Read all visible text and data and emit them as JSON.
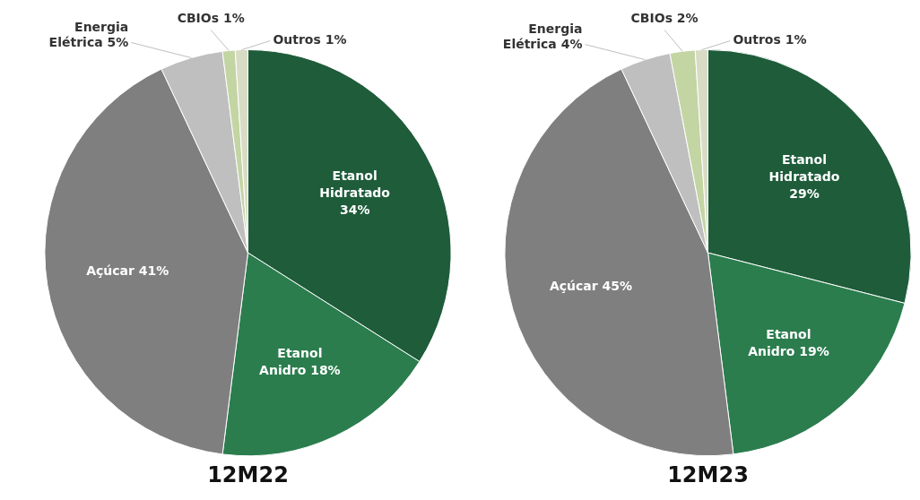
{
  "chart_data": [
    {
      "type": "pie",
      "title": "12M22",
      "categories": [
        "Etanol Hidratado",
        "Etanol Anidro",
        "Açúcar",
        "Energia Elétrica",
        "CBIOs",
        "Outros"
      ],
      "values": [
        34,
        18,
        41,
        5,
        1,
        1
      ],
      "value_labels": [
        "34%",
        "18%",
        "41%",
        "5%",
        "1%",
        "1%"
      ],
      "colors": [
        "#1e5c3a",
        "#2b7d4e",
        "#7f7f7f",
        "#bfbfbf",
        "#c3d5a3",
        "#d8dcc4"
      ]
    },
    {
      "type": "pie",
      "title": "12M23",
      "categories": [
        "Etanol Hidratado",
        "Etanol Anidro",
        "Açúcar",
        "Energia Elétrica",
        "CBIOs",
        "Outros"
      ],
      "values": [
        29,
        19,
        45,
        4,
        2,
        1
      ],
      "value_labels": [
        "29%",
        "19%",
        "45%",
        "4%",
        "2%",
        "1%"
      ],
      "colors": [
        "#1e5c3a",
        "#2b7d4e",
        "#7f7f7f",
        "#bfbfbf",
        "#c3d5a3",
        "#d8dcc4"
      ]
    }
  ]
}
